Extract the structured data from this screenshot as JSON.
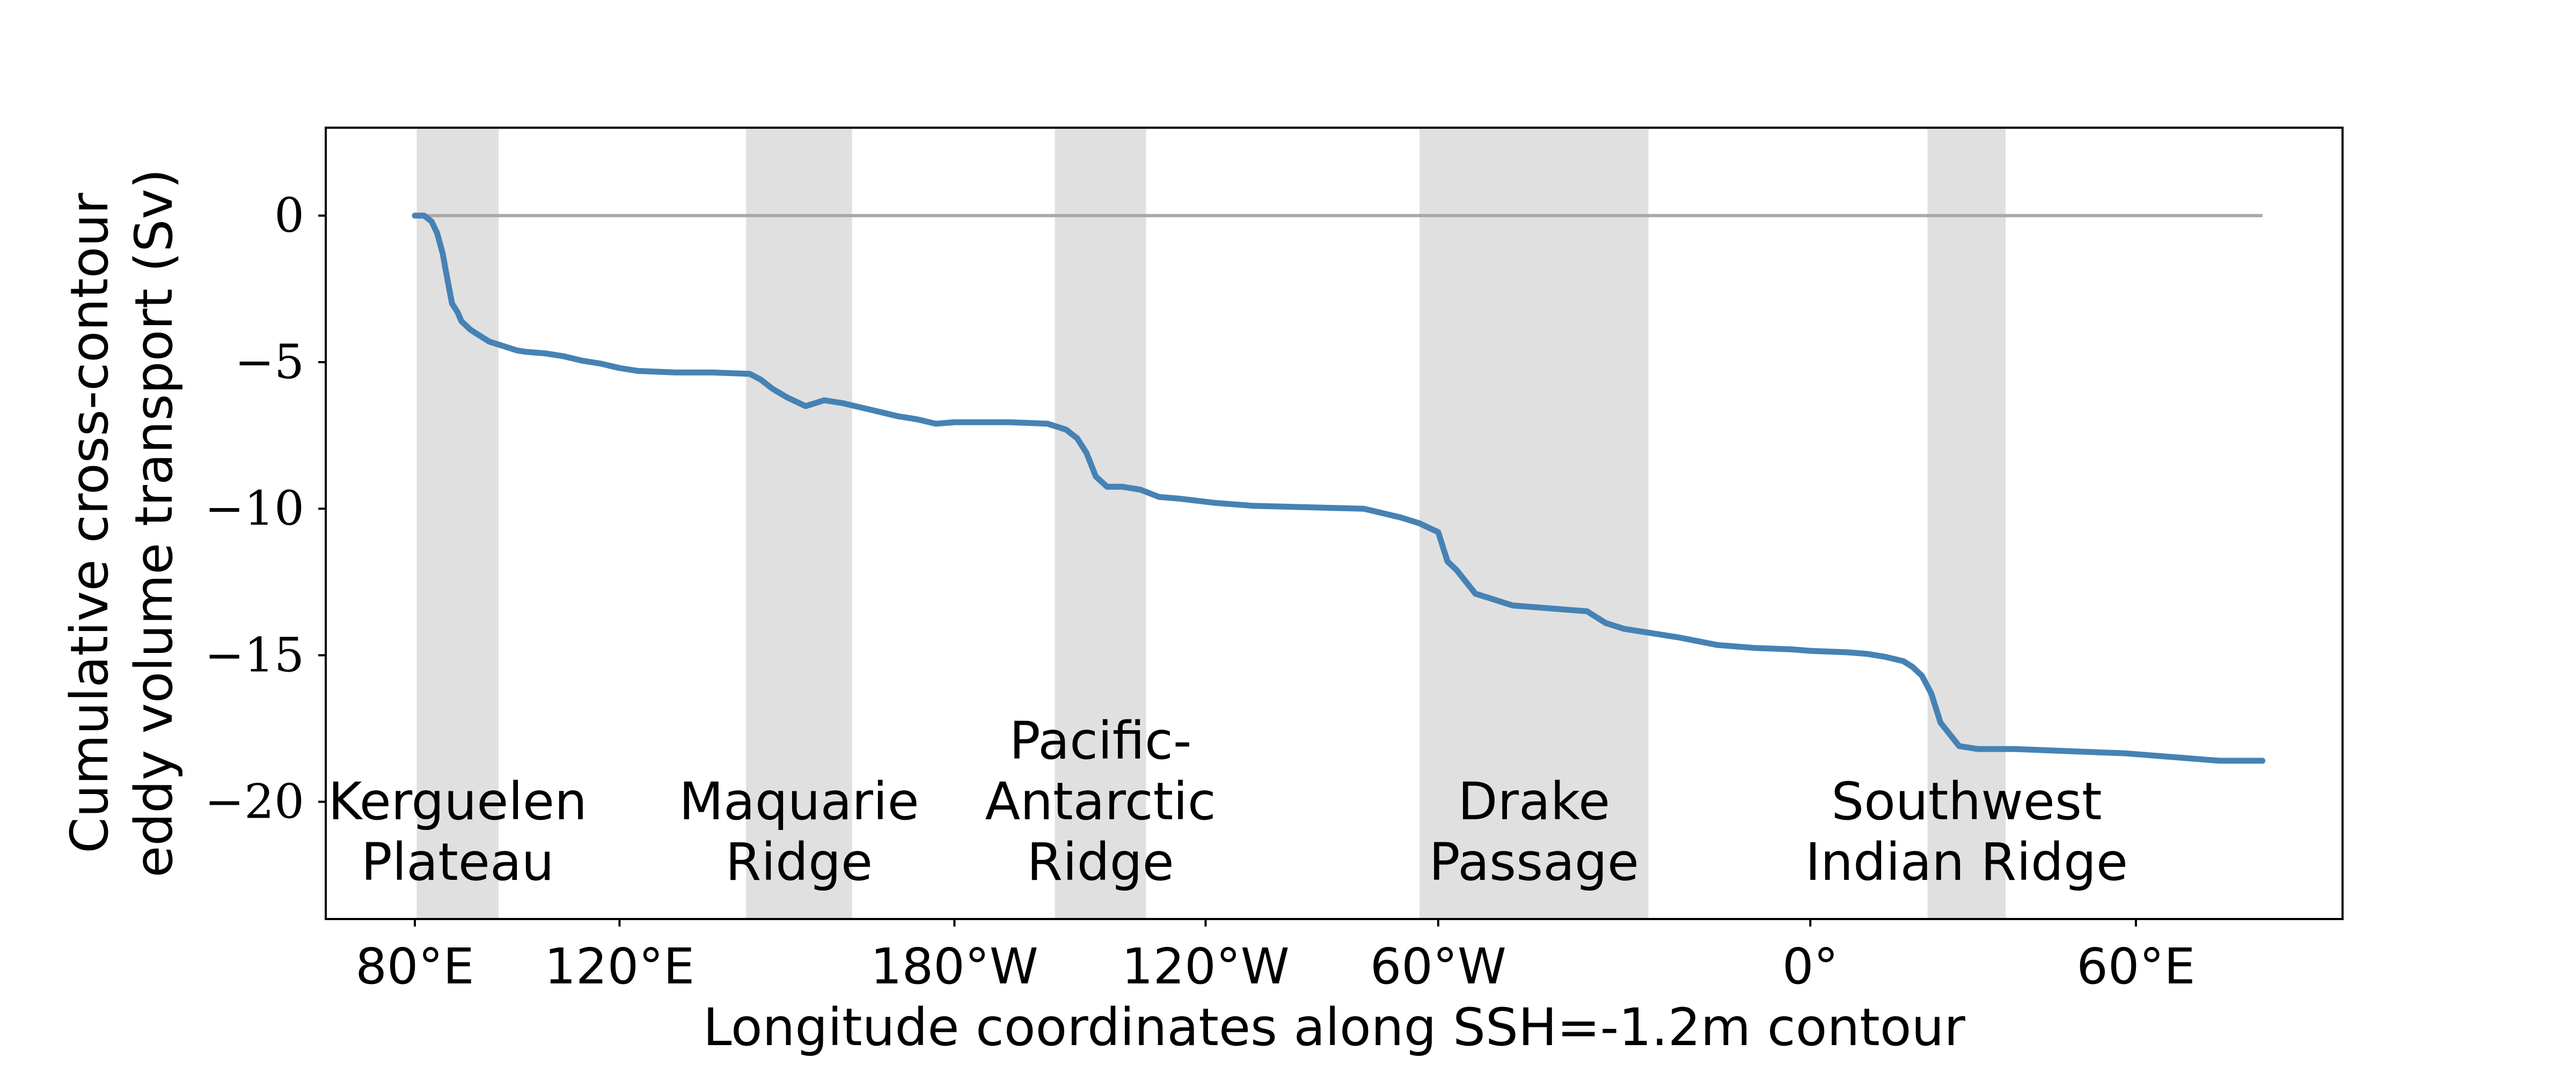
{
  "chart_data": {
    "type": "line",
    "title": "",
    "xlabel": "Longitude coordinates along SSH=-1.2m contour",
    "ylabel_lines": [
      "Cumulative cross-contour",
      "eddy volume transport (Sv)"
    ],
    "x_domain": [
      0,
      100
    ],
    "ylim": [
      -24,
      3
    ],
    "grid": false,
    "legend": "none",
    "colors": {
      "line": "#4682b4",
      "zero_line": "#a9a9a9",
      "shade": "#e0e0e0",
      "frame": "#000000"
    },
    "y_ticks": [
      {
        "value": 0,
        "label": "0"
      },
      {
        "value": -5,
        "label": "−5"
      },
      {
        "value": -10,
        "label": "−10"
      },
      {
        "value": -15,
        "label": "−15"
      },
      {
        "value": -20,
        "label": "−20"
      }
    ],
    "x_ticks": [
      {
        "value": 0,
        "label": "80°E"
      },
      {
        "value": 11,
        "label": "120°E"
      },
      {
        "value": 29,
        "label": "180°W"
      },
      {
        "value": 42.5,
        "label": "120°W"
      },
      {
        "value": 55,
        "label": "60°W"
      },
      {
        "value": 75,
        "label": "0°"
      },
      {
        "value": 92.5,
        "label": "60°E"
      }
    ],
    "regions": [
      {
        "x0": 0.1,
        "x1": 4.5,
        "label_lines": [
          "Kerguelen",
          "Plateau"
        ]
      },
      {
        "x0": 17.8,
        "x1": 23.5,
        "label_lines": [
          "Maquarie",
          "Ridge"
        ]
      },
      {
        "x0": 34.4,
        "x1": 39.3,
        "label_lines": [
          "Pacific-",
          "Antarctic",
          "Ridge"
        ]
      },
      {
        "x0": 54.0,
        "x1": 66.3,
        "label_lines": [
          "Drake",
          "Passage"
        ]
      },
      {
        "x0": 81.3,
        "x1": 85.5,
        "label_lines": [
          "Southwest",
          "Indian Ridge"
        ]
      }
    ],
    "zero_line": {
      "x0": 0,
      "x1": 99.3,
      "y": 0
    },
    "series": [
      {
        "x": [
          0,
          0.5,
          0.9,
          1.2,
          1.5,
          1.7,
          2.0,
          2.3,
          2.5,
          3.0,
          3.5,
          4.0,
          4.5,
          5.0,
          5.5,
          6.0,
          7.0,
          8.0,
          9.0,
          10.0,
          11.0,
          12.0,
          14.0,
          16.0,
          18.0,
          18.6,
          19.2,
          20.0,
          21.0,
          22.0,
          23.0,
          24.0,
          25.0,
          26.0,
          27.0,
          28.0,
          29.0,
          30.0,
          32.0,
          34.0,
          35.0,
          35.6,
          36.1,
          36.6,
          37.2,
          38.0,
          39.0,
          40.0,
          41.0,
          43.0,
          45.0,
          48.0,
          51.0,
          52.0,
          53.0,
          54.0,
          55.0,
          55.5,
          56.0,
          57.0,
          58.0,
          59.0,
          62.0,
          63.0,
          64.0,
          65.0,
          66.0,
          67.0,
          68.0,
          70.0,
          72.0,
          74.0,
          75.0,
          77.0,
          78.0,
          79.0,
          80.0,
          80.5,
          81.0,
          81.5,
          82.0,
          83.0,
          84.0,
          86.0,
          88.0,
          90.0,
          92.0,
          94.0,
          95.0,
          96.0,
          97.0,
          98.0,
          99.0,
          99.3
        ],
        "y": [
          0,
          0,
          -0.2,
          -0.6,
          -1.3,
          -2.0,
          -3.0,
          -3.3,
          -3.6,
          -3.9,
          -4.1,
          -4.3,
          -4.4,
          -4.5,
          -4.6,
          -4.65,
          -4.7,
          -4.8,
          -4.95,
          -5.05,
          -5.2,
          -5.3,
          -5.35,
          -5.35,
          -5.4,
          -5.6,
          -5.9,
          -6.2,
          -6.5,
          -6.3,
          -6.4,
          -6.55,
          -6.7,
          -6.85,
          -6.95,
          -7.1,
          -7.05,
          -7.05,
          -7.05,
          -7.1,
          -7.3,
          -7.6,
          -8.1,
          -8.9,
          -9.25,
          -9.25,
          -9.35,
          -9.6,
          -9.65,
          -9.8,
          -9.9,
          -9.95,
          -10.0,
          -10.15,
          -10.3,
          -10.5,
          -10.8,
          -11.8,
          -12.1,
          -12.9,
          -13.1,
          -13.3,
          -13.45,
          -13.5,
          -13.9,
          -14.1,
          -14.2,
          -14.3,
          -14.4,
          -14.65,
          -14.75,
          -14.8,
          -14.85,
          -14.9,
          -14.95,
          -15.05,
          -15.2,
          -15.4,
          -15.7,
          -16.3,
          -17.3,
          -18.1,
          -18.2,
          -18.2,
          -18.25,
          -18.3,
          -18.35,
          -18.45,
          -18.5,
          -18.55,
          -18.6,
          -18.6,
          -18.6,
          -18.6
        ]
      }
    ]
  }
}
